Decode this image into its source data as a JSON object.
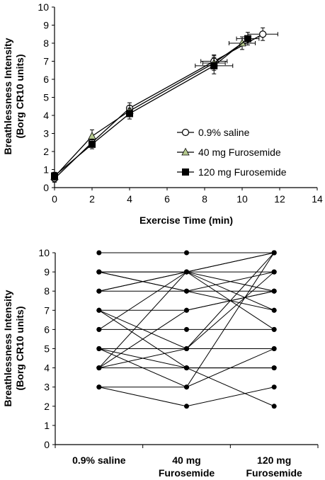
{
  "chart_data": [
    {
      "type": "line",
      "xlabel": "Exercise Time (min)",
      "ylabel_line1": "Breathlessness Intensity",
      "ylabel_line2": "(Borg CR10 units)",
      "xlim": [
        0,
        14
      ],
      "ylim": [
        0,
        10
      ],
      "xticks": [
        "0",
        "2",
        "4",
        "6",
        "8",
        "10",
        "12",
        "14"
      ],
      "yticks": [
        "0",
        "1",
        "2",
        "3",
        "4",
        "5",
        "6",
        "7",
        "8",
        "9",
        "10"
      ],
      "legend_position": "center-right",
      "series": [
        {
          "name": "0.9% saline",
          "marker": "circle-open",
          "color": "#000000",
          "fill": "#ffffff",
          "points": [
            {
              "x": 0,
              "y": 0.5,
              "yerr": 0.2,
              "xerr": 0
            },
            {
              "x": 2,
              "y": 2.5,
              "yerr": 0.25,
              "xerr": 0
            },
            {
              "x": 4,
              "y": 4.4,
              "yerr": 0.3,
              "xerr": 0
            },
            {
              "x": 8.5,
              "y": 7.0,
              "yerr": 0.35,
              "xerr": 0.7
            },
            {
              "x": 11.1,
              "y": 8.5,
              "yerr": 0.35,
              "xerr": 0.8
            }
          ]
        },
        {
          "name": "40 mg Furosemide",
          "marker": "triangle",
          "color": "#000000",
          "fill": "#b5c98e",
          "points": [
            {
              "x": 0,
              "y": 0.6,
              "yerr": 0.2,
              "xerr": 0
            },
            {
              "x": 2,
              "y": 2.85,
              "yerr": 0.35,
              "xerr": 0
            },
            {
              "x": 4,
              "y": 4.25,
              "yerr": 0.3,
              "xerr": 0
            },
            {
              "x": 8.5,
              "y": 6.9,
              "yerr": 0.4,
              "xerr": 0.6
            },
            {
              "x": 10,
              "y": 8.0,
              "yerr": 0.35,
              "xerr": 0.7
            }
          ]
        },
        {
          "name": "120 mg Furosemide",
          "marker": "square",
          "color": "#000000",
          "fill": "#000000",
          "points": [
            {
              "x": 0,
              "y": 0.65,
              "yerr": 0.2,
              "xerr": 0
            },
            {
              "x": 2,
              "y": 2.4,
              "yerr": 0.25,
              "xerr": 0
            },
            {
              "x": 4,
              "y": 4.1,
              "yerr": 0.3,
              "xerr": 0
            },
            {
              "x": 8.5,
              "y": 6.75,
              "yerr": 0.45,
              "xerr": 1.0
            },
            {
              "x": 10.3,
              "y": 8.25,
              "yerr": 0.35,
              "xerr": 0.6
            }
          ]
        }
      ]
    },
    {
      "type": "line",
      "subtype": "individual-paired",
      "ylabel_line1": "Breathlessness Intensity",
      "ylabel_line2": "(Borg CR10 units)",
      "ylim": [
        0,
        10
      ],
      "yticks": [
        "0",
        "1",
        "2",
        "3",
        "4",
        "5",
        "6",
        "7",
        "8",
        "9",
        "10"
      ],
      "categories": [
        {
          "line1": "0.9% saline",
          "line2": ""
        },
        {
          "line1": "40 mg",
          "line2": "Furosemide"
        },
        {
          "line1": "120 mg",
          "line2": "Furosemide"
        }
      ],
      "subjects": [
        [
          10,
          10,
          10
        ],
        [
          9,
          9,
          9
        ],
        [
          9,
          9,
          8
        ],
        [
          9,
          8,
          9
        ],
        [
          9,
          8,
          7
        ],
        [
          8,
          9,
          10
        ],
        [
          8,
          8,
          8
        ],
        [
          8,
          9,
          7
        ],
        [
          7,
          7,
          8
        ],
        [
          7,
          5,
          9
        ],
        [
          7,
          4,
          2
        ],
        [
          6,
          6,
          6
        ],
        [
          6,
          9,
          10
        ],
        [
          5,
          5,
          5
        ],
        [
          5,
          4,
          4
        ],
        [
          4,
          5,
          10
        ],
        [
          4,
          4,
          4
        ],
        [
          4,
          9,
          6
        ],
        [
          4,
          7,
          8
        ],
        [
          3,
          2,
          3
        ],
        [
          3,
          3,
          5
        ],
        [
          5,
          3,
          10
        ]
      ]
    }
  ]
}
